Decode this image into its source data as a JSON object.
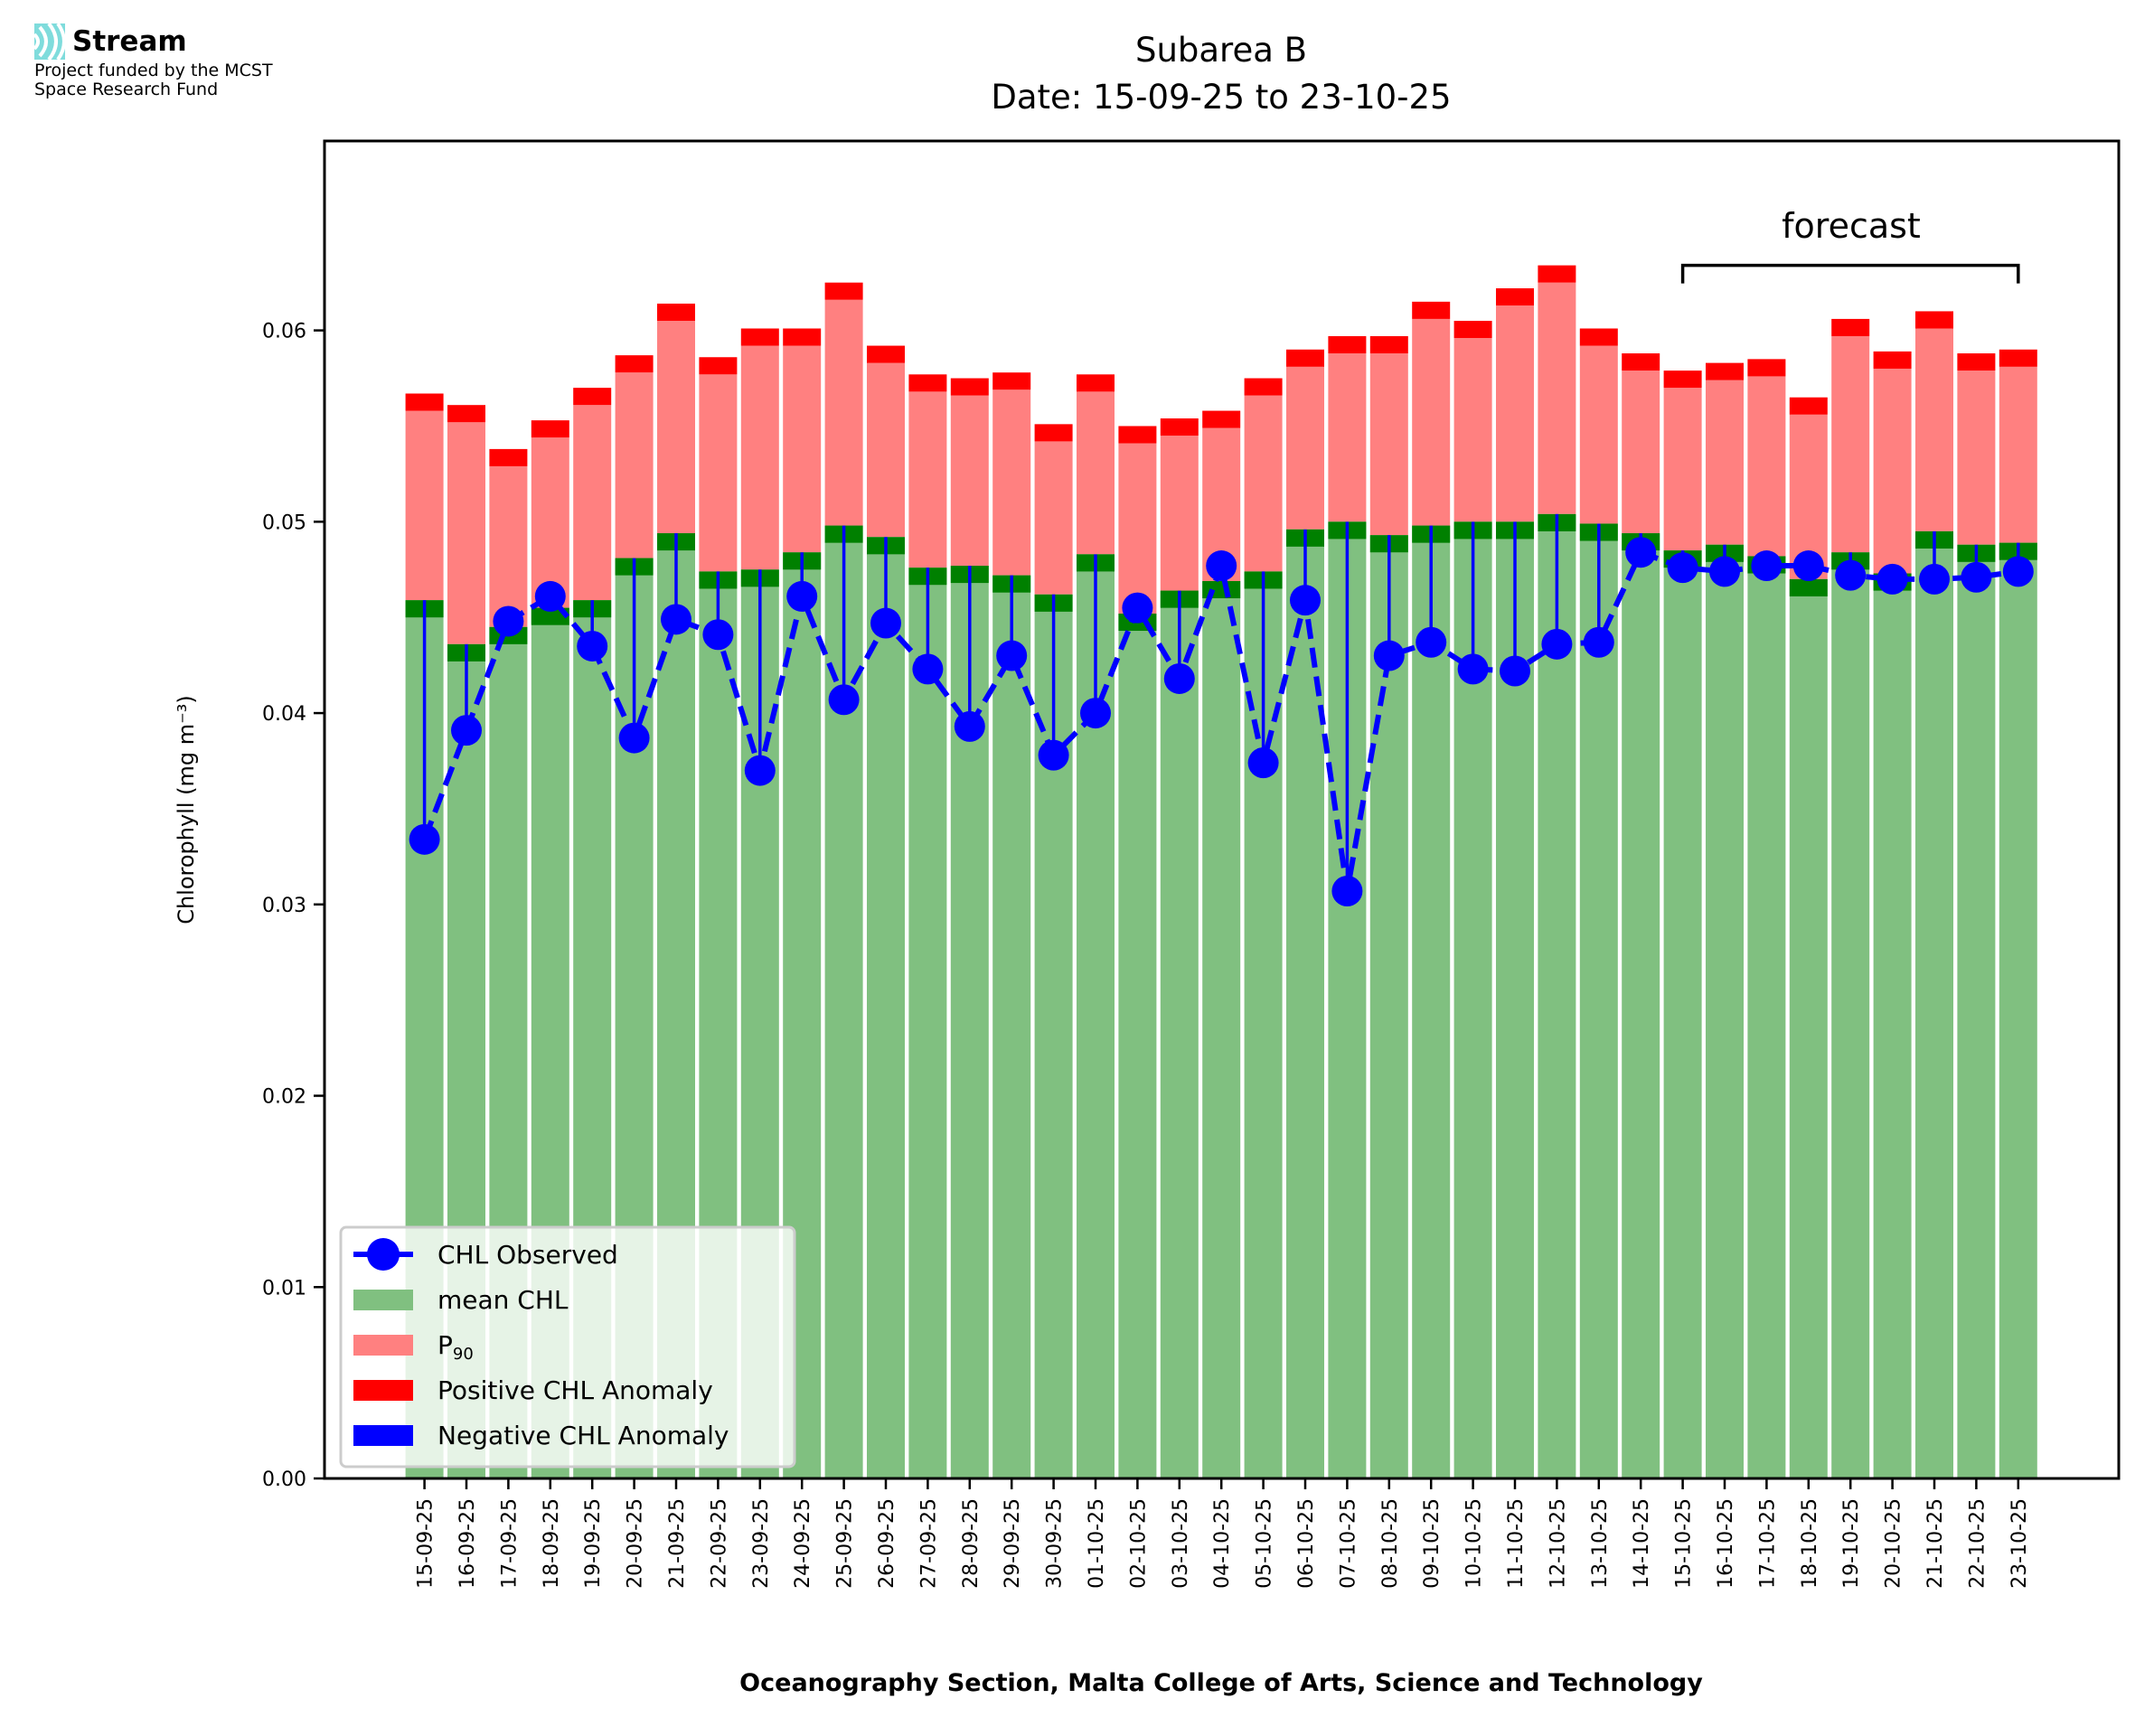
{
  "logo": {
    "name": "Stream",
    "subtitle_line1": "Project funded by the MCST",
    "subtitle_line2": "Space Research Fund",
    "color": "#7fdcdc"
  },
  "chart_data": {
    "type": "bar",
    "title": "Subarea B",
    "subtitle": "Date: 15-09-25 to 23-10-25",
    "xlabel": "Oceanography Section, Malta College of Arts, Science and Technology",
    "ylabel": "Chlorophyll (mg m⁻³)",
    "ylim": [
      0,
      0.0699
    ],
    "yticks": [
      "0.00",
      "0.01",
      "0.02",
      "0.03",
      "0.04",
      "0.05",
      "0.06"
    ],
    "ytick_values": [
      0,
      0.01,
      0.02,
      0.03,
      0.04,
      0.05,
      0.06
    ],
    "grid": false,
    "legend_position": "lower-left",
    "annotation": {
      "text": "forecast",
      "from": "15-10-25",
      "to": "23-10-25",
      "level": 0.0634
    },
    "anomaly_band": 0.0009,
    "categories": [
      "15-09-25",
      "16-09-25",
      "17-09-25",
      "18-09-25",
      "19-09-25",
      "20-09-25",
      "21-09-25",
      "22-09-25",
      "23-09-25",
      "24-09-25",
      "25-09-25",
      "26-09-25",
      "27-09-25",
      "28-09-25",
      "29-09-25",
      "30-09-25",
      "01-10-25",
      "02-10-25",
      "03-10-25",
      "04-10-25",
      "05-10-25",
      "06-10-25",
      "07-10-25",
      "08-10-25",
      "09-10-25",
      "10-10-25",
      "11-10-25",
      "12-10-25",
      "13-10-25",
      "14-10-25",
      "15-10-25",
      "16-10-25",
      "17-10-25",
      "18-10-25",
      "19-10-25",
      "20-10-25",
      "21-10-25",
      "22-10-25",
      "23-10-25"
    ],
    "series": [
      {
        "name": "mean CHL",
        "color": "#80c080",
        "band_color": "#008000",
        "values": [
          0.0459,
          0.0436,
          0.0445,
          0.0455,
          0.0459,
          0.0481,
          0.0494,
          0.0474,
          0.0475,
          0.0484,
          0.0498,
          0.0492,
          0.0476,
          0.0477,
          0.0472,
          0.0462,
          0.0483,
          0.0452,
          0.0464,
          0.0469,
          0.0474,
          0.0496,
          0.05,
          0.0493,
          0.0498,
          0.05,
          0.05,
          0.0504,
          0.0499,
          0.0494,
          0.0485,
          0.0488,
          0.0482,
          0.047,
          0.0484,
          0.0473,
          0.0495,
          0.0488,
          0.0489
        ]
      },
      {
        "name": "P90",
        "color": "#ff8080",
        "values": [
          0.0558,
          0.0552,
          0.0529,
          0.0544,
          0.0561,
          0.0578,
          0.0605,
          0.0577,
          0.0592,
          0.0592,
          0.0616,
          0.0583,
          0.0568,
          0.0566,
          0.0569,
          0.0542,
          0.0568,
          0.0541,
          0.0545,
          0.0549,
          0.0566,
          0.0581,
          0.0588,
          0.0588,
          0.0606,
          0.0596,
          0.0613,
          0.0625,
          0.0592,
          0.0579,
          0.057,
          0.0574,
          0.0576,
          0.0556,
          0.0597,
          0.058,
          0.0601,
          0.0579,
          0.0581
        ]
      },
      {
        "name": "CHL Observed",
        "color": "#0000ff",
        "values": [
          0.0334,
          0.0391,
          0.0448,
          0.0461,
          0.0435,
          0.0387,
          0.0449,
          0.0441,
          0.037,
          0.0461,
          0.0407,
          0.0447,
          0.0423,
          0.0393,
          0.043,
          0.0378,
          0.04,
          0.0455,
          0.0418,
          0.0477,
          0.0374,
          0.0459,
          0.0307,
          0.043,
          0.0437,
          0.0423,
          0.0422,
          0.0436,
          0.0437,
          0.0484,
          0.0476,
          0.0474,
          0.0477,
          0.0477,
          0.0472,
          0.047,
          0.047,
          0.0471,
          0.0474
        ]
      }
    ],
    "legend": [
      {
        "label": "CHL Observed",
        "kind": "line-marker",
        "color": "#0000ff"
      },
      {
        "label": "mean CHL",
        "kind": "patch",
        "color": "#80c080"
      },
      {
        "label": "P",
        "sub": "90",
        "kind": "patch",
        "color": "#ff8080"
      },
      {
        "label": "Positive CHL Anomaly",
        "kind": "patch",
        "color": "#ff0000"
      },
      {
        "label": "Negative CHL Anomaly",
        "kind": "patch",
        "color": "#0000ff"
      }
    ]
  }
}
